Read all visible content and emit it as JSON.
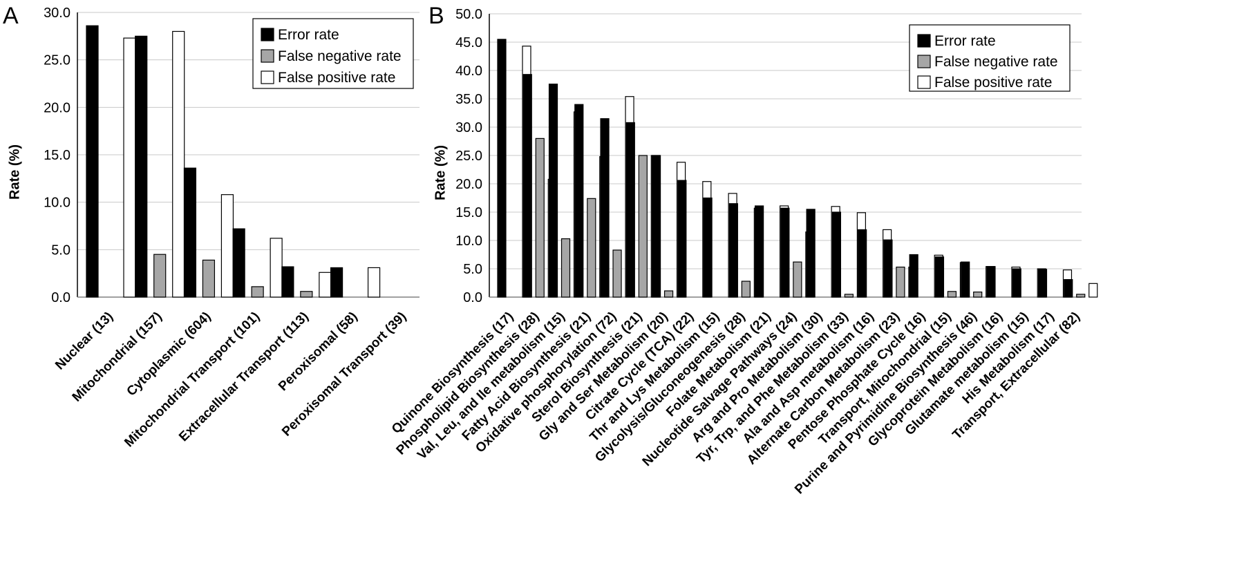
{
  "colors": {
    "error_rate": "#000000",
    "false_negative_rate": "#a6a6a6",
    "false_positive_rate": "#ffffff",
    "gridline": "#c8c8c8"
  },
  "chart_data": [
    {
      "type": "bar",
      "panel_label": "A",
      "ylabel": "Rate (%)",
      "ylim": [
        0,
        30
      ],
      "yticks": [
        "0.0",
        "5.0",
        "10.0",
        "15.0",
        "20.0",
        "25.0",
        "30.0"
      ],
      "grid": true,
      "legend": {
        "position": "top-right",
        "entries": [
          "Error rate",
          "False negative rate",
          "False positive rate"
        ]
      },
      "categories": [
        "Nuclear (13)",
        "Mitochondrial (157)",
        "Cytoplasmic (604)",
        "Mitochondrial Transport (101)",
        "Extracellular Transport (113)",
        "Peroxisomal (58)",
        "Peroxisomal Transport (39)"
      ],
      "series": [
        {
          "name": "Error rate",
          "values": [
            28.6,
            27.5,
            13.6,
            7.2,
            3.2,
            3.1,
            0
          ]
        },
        {
          "name": "False negative rate",
          "values": [
            0,
            4.5,
            3.9,
            1.1,
            0.6,
            0,
            0
          ]
        },
        {
          "name": "False positive rate",
          "values": [
            27.3,
            28.0,
            10.8,
            6.2,
            2.6,
            3.1,
            0
          ]
        }
      ]
    },
    {
      "type": "bar",
      "panel_label": "B",
      "ylabel": "Rate (%)",
      "ylim": [
        0,
        50
      ],
      "yticks": [
        "0.0",
        "5.0",
        "10.0",
        "15.0",
        "20.0",
        "25.0",
        "30.0",
        "35.0",
        "40.0",
        "45.0",
        "50.0"
      ],
      "grid": true,
      "legend": {
        "position": "top-right",
        "entries": [
          "Error rate",
          "False negative rate",
          "False positive rate"
        ]
      },
      "categories": [
        "Quinone Biosynthesis (17)",
        "Phospholipid Biosynthesis (28)",
        "Val, Leu, and Ile metabolism (15)",
        "Fatty Acid  Biosynthesis (21)",
        "Oxidative phosphorylation (72)",
        "Sterol Biosynthesis (21)",
        "Gly and Ser Metabolism (20)",
        "Citrate Cycle (TCA) (22)",
        "Thr and Lys Metabolism (15)",
        "Glycolysis/Gluconeogenesis (28)",
        "Folate Metabolism (21)",
        "Nucleotide Salvage Pathways (24)",
        "Arg and Pro Metabolism (30)",
        "Tyr, Trp, and Phe Metabolism (33)",
        "Ala and Asp metabolism (16)",
        "Alternate Carbon Metabolism (23)",
        "Pentose Phosphate Cycle (16)",
        "Transport, Mitochondrial (15)",
        "Purine and Pyrimidine Biosynthesis (46)",
        "Glycoprotein Metabolism (16)",
        "Glutamate metabolism (15)",
        "His Metabolism (17)",
        "Transport, Extracellular (82)"
      ],
      "series": [
        {
          "name": "Error rate",
          "values": [
            45.5,
            39.3,
            37.6,
            34.0,
            31.5,
            30.8,
            25.0,
            20.6,
            17.5,
            16.5,
            16.1,
            15.7,
            15.5,
            15.0,
            11.9,
            10.1,
            7.5,
            7.1,
            6.2,
            5.4,
            5.0,
            4.9,
            3.1
          ]
        },
        {
          "name": "False negative rate",
          "values": [
            0,
            28.0,
            10.3,
            17.4,
            8.3,
            25.0,
            1.1,
            0,
            0,
            2.8,
            0,
            6.2,
            0,
            0.5,
            0,
            5.3,
            0,
            1.0,
            0.9,
            0,
            0,
            0,
            0.5
          ]
        },
        {
          "name": "False positive rate",
          "values": [
            44.3,
            20.8,
            32.7,
            24.8,
            35.4,
            25.0,
            23.8,
            20.4,
            18.3,
            15.7,
            16.1,
            11.5,
            16.0,
            14.9,
            11.9,
            5.3,
            7.4,
            6.1,
            5.4,
            5.3,
            5.0,
            4.8,
            2.4
          ]
        }
      ]
    }
  ]
}
